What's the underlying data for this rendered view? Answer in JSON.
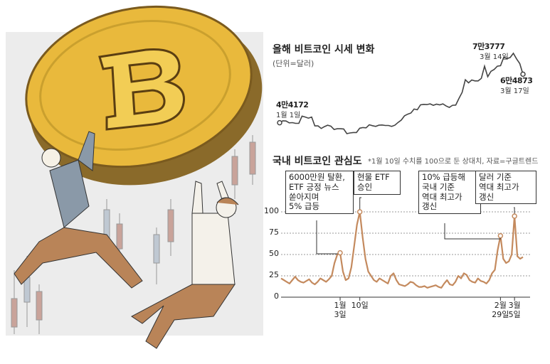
{
  "chart_data": [
    {
      "type": "line",
      "title": "올해 비트코인 시세 변화",
      "subtitle": "(단위=달러)",
      "annotations": [
        {
          "value": "4만4172",
          "date": "1월 1일"
        },
        {
          "value": "7만3777",
          "date": "3월 14일"
        },
        {
          "value": "6만4873",
          "date": "3월 17일"
        }
      ],
      "color": "#444444",
      "categories": [
        null,
        null,
        null,
        null,
        null,
        null,
        null,
        null,
        null,
        null,
        null,
        null,
        null,
        null,
        null,
        null,
        null,
        null,
        null,
        null,
        null,
        null,
        null,
        null,
        null,
        null,
        null,
        null,
        null,
        null,
        null,
        null,
        null,
        null,
        null,
        null,
        null,
        null,
        null,
        null,
        null,
        null,
        null,
        null,
        null,
        null,
        null,
        null,
        null,
        null,
        null,
        null,
        null,
        null,
        null,
        null,
        null,
        null,
        null,
        null,
        null,
        null,
        null,
        null,
        null,
        null,
        null,
        null,
        null,
        null,
        null,
        null,
        null,
        null,
        null,
        null,
        null
      ],
      "values": [
        44172,
        45000,
        44900,
        44100,
        44200,
        43900,
        43900,
        47000,
        46600,
        46100,
        46600,
        42800,
        42800,
        41700,
        42500,
        43100,
        42700,
        41300,
        41600,
        41600,
        41500,
        39500,
        39800,
        40000,
        40000,
        41800,
        42100,
        42000,
        43300,
        42900,
        42600,
        43100,
        43200,
        43000,
        43000,
        42600,
        43100,
        44300,
        45300,
        47100,
        47800,
        48300,
        50000,
        49700,
        51800,
        52000,
        51900,
        52200,
        51600,
        52100,
        51800,
        52200,
        51300,
        50700,
        51600,
        51700,
        54500,
        57100,
        62500,
        61200,
        62400,
        62000,
        62000,
        63100,
        68300,
        63800,
        66100,
        66900,
        68300,
        68500,
        72100,
        71500,
        72000,
        73777,
        71400,
        69400,
        64873
      ]
    },
    {
      "type": "line",
      "title": "국내 비트코인 관심도",
      "subtitle": "*1월 10일 수치를 100으로 둔 상대치, 자료=구글트렌드",
      "annotations": [
        "6000만원 탈환,\nETF 긍정 뉴스\n쏟아지며\n5% 급등",
        "현물 ETF\n승인",
        "10% 급등해\n국내 기준\n역대 최고가\n갱신",
        "달러 기준\n역대 최고가\n갱신"
      ],
      "color": "#c48a5e",
      "ylim": [
        0,
        110
      ],
      "yticks": [
        0,
        25,
        50,
        75,
        100
      ],
      "grid": true,
      "categories": [
        null,
        null,
        null,
        null,
        null,
        null,
        null,
        null,
        null,
        null,
        null,
        null,
        null,
        null,
        null,
        null,
        null,
        null,
        null,
        null,
        null,
        "1월\n3일",
        null,
        null,
        null,
        null,
        null,
        null,
        "10일",
        null,
        null,
        null,
        null,
        null,
        null,
        null,
        null,
        null,
        null,
        null,
        null,
        null,
        null,
        null,
        null,
        null,
        null,
        null,
        null,
        null,
        null,
        null,
        null,
        null,
        null,
        null,
        null,
        null,
        null,
        null,
        null,
        null,
        null,
        null,
        null,
        null,
        null,
        null,
        null,
        null,
        null,
        null,
        null,
        null,
        null,
        null,
        null,
        null,
        "2월\n29일",
        null,
        null,
        null,
        null,
        "3월\n5일",
        null,
        null,
        null
      ],
      "values": [
        22,
        20,
        18,
        16,
        20,
        24,
        20,
        18,
        17,
        19,
        21,
        17,
        15,
        18,
        22,
        20,
        18,
        21,
        25,
        40,
        50,
        52,
        30,
        20,
        22,
        35,
        60,
        85,
        100,
        70,
        45,
        30,
        25,
        20,
        18,
        22,
        20,
        18,
        16,
        25,
        28,
        20,
        15,
        14,
        13,
        15,
        18,
        17,
        14,
        12,
        12,
        13,
        11,
        12,
        13,
        14,
        12,
        11,
        16,
        20,
        15,
        14,
        18,
        25,
        22,
        28,
        26,
        20,
        18,
        17,
        22,
        19,
        18,
        16,
        20,
        28,
        32,
        55,
        72,
        45,
        40,
        42,
        50,
        95,
        48,
        45,
        47
      ]
    }
  ]
}
